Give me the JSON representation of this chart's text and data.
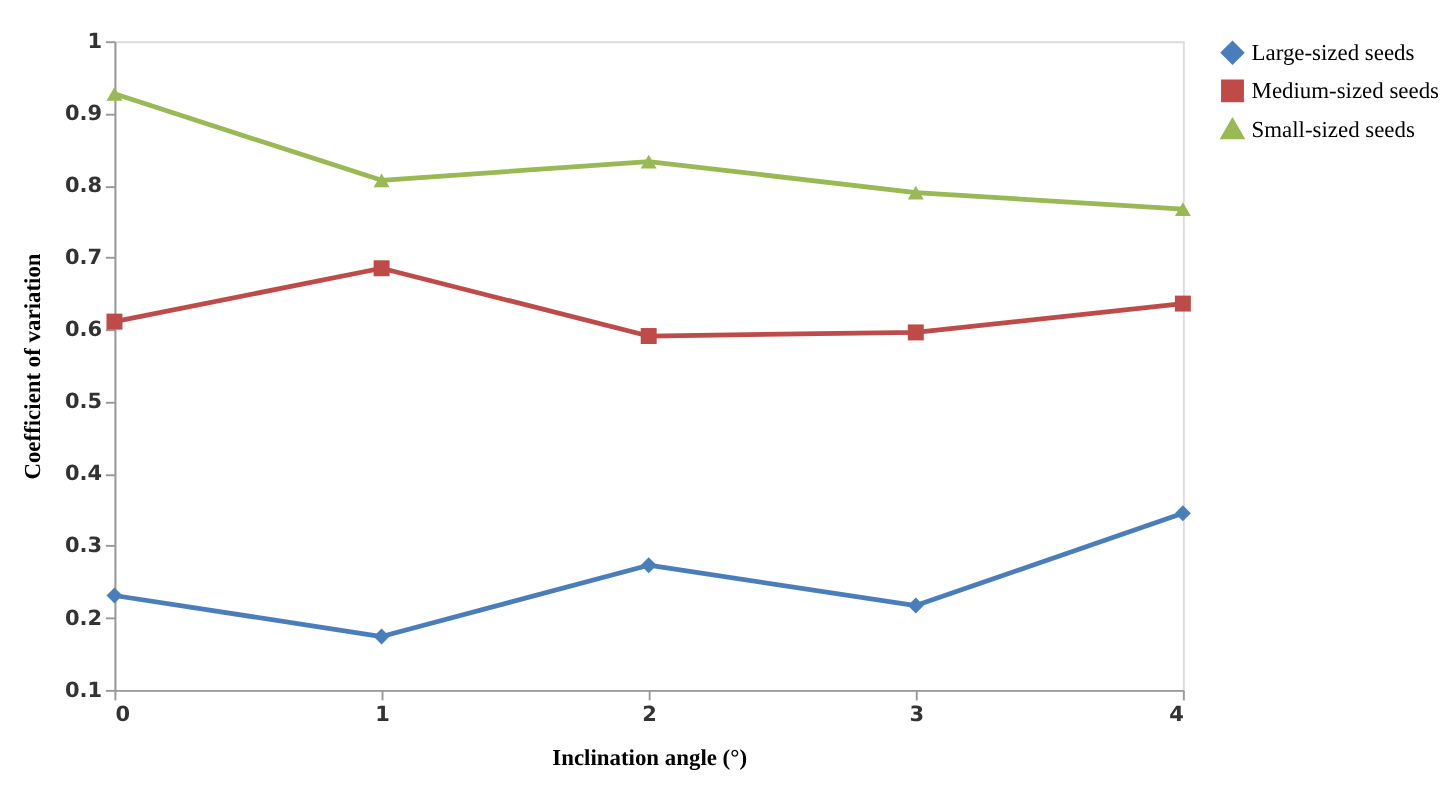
{
  "chart_data": {
    "type": "line",
    "xlabel": "Inclination angle (°)",
    "ylabel": "Coefficient of variation",
    "x": [
      0,
      1,
      2,
      3,
      4
    ],
    "xlim": [
      0,
      4
    ],
    "xticks": [
      0,
      1,
      2,
      3,
      4
    ],
    "ylim": [
      0.1,
      1
    ],
    "yticks": [
      0.1,
      0.2,
      0.3,
      0.4,
      0.5,
      0.6,
      0.7,
      0.8,
      0.9,
      1
    ],
    "grid": false,
    "legend": "right",
    "series": [
      {
        "name": "Large-sized seeds",
        "color": "#4a7ebb",
        "marker": "diamond",
        "values": [
          0.231,
          0.174,
          0.273,
          0.217,
          0.345
        ]
      },
      {
        "name": "Medium-sized seeds",
        "color": "#be4b48",
        "marker": "square",
        "values": [
          0.611,
          0.685,
          0.591,
          0.596,
          0.636
        ]
      },
      {
        "name": "Small-sized seeds",
        "color": "#98b954",
        "marker": "triangle",
        "values": [
          0.927,
          0.807,
          0.833,
          0.79,
          0.767
        ]
      }
    ]
  }
}
